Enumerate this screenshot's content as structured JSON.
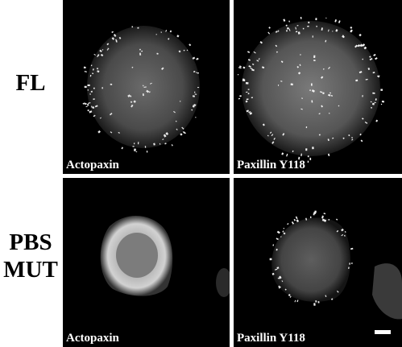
{
  "rows": [
    {
      "label_lines": [
        "FL"
      ]
    },
    {
      "label_lines": [
        "PBS",
        "MUT"
      ]
    }
  ],
  "panels": [
    {
      "caption": "Actopaxin"
    },
    {
      "caption": "Paxillin Y118"
    },
    {
      "caption": "Actopaxin"
    },
    {
      "caption": "Paxillin Y118"
    }
  ]
}
